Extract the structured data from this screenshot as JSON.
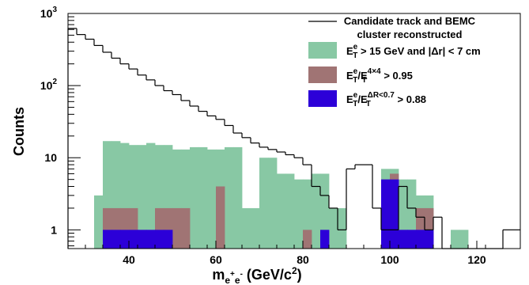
{
  "chart_data": {
    "type": "bar",
    "xlabel": {
      "base": "m",
      "sub_e1": "e",
      "sup_plus": "+",
      "sub_e2": "e",
      "sup_minus": "-",
      "rest": " (GeV/c",
      "sup_2": "2",
      "close": ")"
    },
    "ylabel": "Counts",
    "xlim": [
      26,
      130
    ],
    "ylim": [
      0.55,
      1000
    ],
    "yscale": "log",
    "xticks": [
      40,
      60,
      80,
      100,
      120
    ],
    "xtick_labels": [
      "40",
      "60",
      "80",
      "100",
      "120"
    ],
    "yticks": [
      1,
      10,
      100,
      1000
    ],
    "ytick_labels": [
      {
        "base": "1",
        "exp": ""
      },
      {
        "base": "10",
        "exp": ""
      },
      {
        "base": "10",
        "exp": "2"
      },
      {
        "base": "10",
        "exp": "3"
      }
    ],
    "bin_edges": [
      26,
      28,
      30,
      32,
      34,
      36,
      38,
      40,
      42,
      44,
      46,
      48,
      50,
      52,
      54,
      56,
      58,
      60,
      62,
      64,
      66,
      68,
      70,
      72,
      74,
      76,
      78,
      80,
      82,
      84,
      86,
      88,
      90,
      92,
      94,
      96,
      98,
      100,
      102,
      104,
      106,
      108,
      110,
      112,
      114,
      116,
      118,
      120,
      122,
      124,
      126,
      128,
      130
    ],
    "series": [
      {
        "name": "Candidate track and BEMC cluster reconstructed",
        "style": "step",
        "color": "#000000",
        "values": [
          620,
          510,
          440,
          360,
          290,
          240,
          200,
          170,
          140,
          120,
          100,
          85,
          75,
          62,
          52,
          44,
          38,
          34,
          28,
          22,
          19,
          16,
          14,
          13,
          12,
          11,
          10,
          8,
          4,
          3,
          2,
          1,
          7,
          8,
          8,
          2,
          1,
          1,
          4,
          2,
          1.5,
          1,
          1.5,
          0,
          0,
          0,
          0,
          0,
          0,
          0,
          1,
          1
        ]
      },
      {
        "name": "E_T^e > 15 GeV and |Δr| < 7 cm",
        "style": "fill",
        "color": "#88c8a4",
        "values": [
          0,
          0,
          0,
          3,
          17,
          17,
          16,
          15,
          15,
          16,
          15,
          15,
          13,
          13,
          14,
          14,
          13,
          13,
          14,
          14,
          2,
          2,
          10,
          10,
          6,
          6,
          5,
          5,
          6,
          6,
          2,
          2,
          0,
          0,
          0,
          0,
          7,
          7,
          5,
          5,
          3,
          3,
          0,
          0,
          1,
          1,
          0,
          0,
          0,
          0,
          0,
          0
        ]
      },
      {
        "name": "E_T^e/E_T^{4×4} > 0.95",
        "style": "fill",
        "color": "#a07474",
        "values": [
          0,
          0,
          0,
          0,
          2,
          2,
          2,
          2,
          0,
          0,
          2,
          2,
          2,
          2,
          0,
          0,
          0,
          4,
          0,
          0,
          0,
          0,
          0,
          0,
          0,
          0,
          0,
          1,
          0,
          0,
          0,
          0,
          0,
          0,
          0,
          0,
          5,
          6,
          0,
          0,
          2,
          2,
          0,
          0,
          0,
          0,
          0,
          0,
          0,
          0,
          0,
          0
        ]
      },
      {
        "name": "E_T^e/E_T^{ΔR<0.7} > 0.88",
        "style": "fill",
        "color": "#2c00d8",
        "values": [
          0,
          0,
          0,
          0,
          1,
          1,
          1,
          1,
          1,
          1,
          1,
          1,
          0,
          0,
          0,
          0,
          0,
          0,
          0,
          0,
          0,
          0,
          0,
          0,
          0,
          0,
          0,
          0,
          0,
          1,
          0,
          0,
          0,
          0,
          0,
          0,
          5,
          5,
          1,
          1,
          1,
          1,
          0,
          0,
          0,
          0,
          0,
          0,
          0,
          0,
          0,
          0
        ]
      }
    ],
    "legend_placement": "top-right",
    "legend": [
      {
        "line1": "Candidate track and BEMC",
        "line2": "cluster reconstructed"
      },
      {
        "E": "E",
        "sup": "e",
        "sub": "T",
        "rest": " > 15 GeV and |Δr| < 7 cm"
      },
      {
        "E": "E",
        "sup": "e",
        "sub": "T",
        "slash": "/E",
        "sup2": "4×4",
        "sub2": "T",
        "rest": " > 0.95"
      },
      {
        "E": "E",
        "sup": "e",
        "sub": "T",
        "slash": "/E",
        "sup2": "ΔR<0.7",
        "sub2": "T",
        "rest": " > 0.88"
      }
    ],
    "grid": false
  }
}
